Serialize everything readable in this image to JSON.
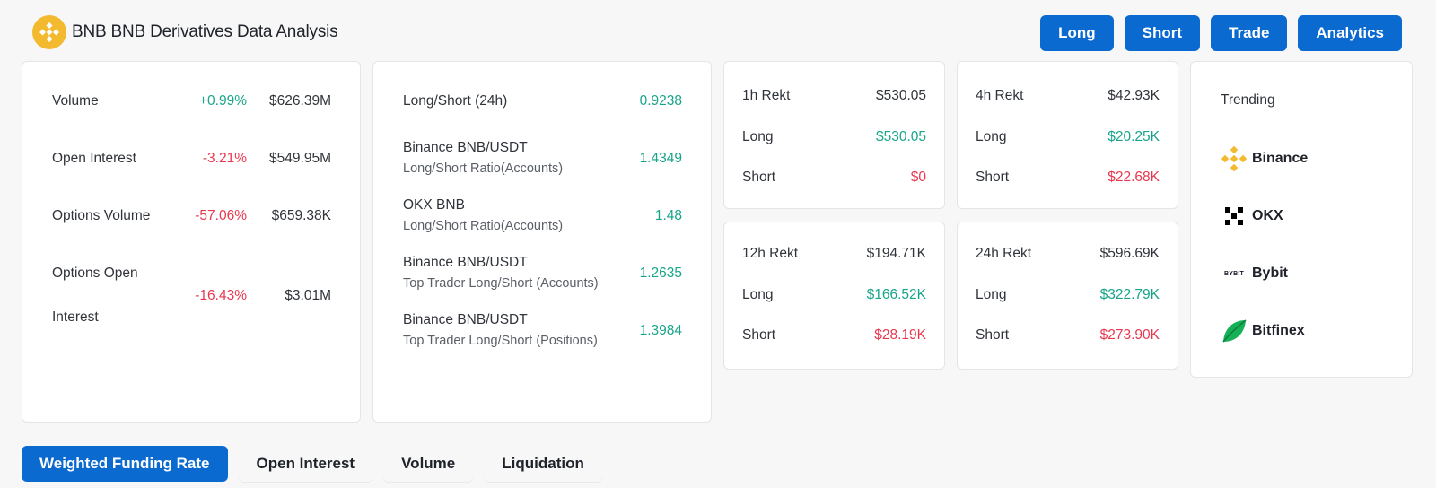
{
  "header": {
    "title": "BNB BNB Derivatives Data Analysis",
    "logo_icon": "bnb-coin-icon"
  },
  "actions": [
    "Long",
    "Short",
    "Trade",
    "Analytics"
  ],
  "metrics": [
    {
      "label": "Volume",
      "change": "+0.99%",
      "value": "$626.39M",
      "trend": "up"
    },
    {
      "label": "Open Interest",
      "change": "-3.21%",
      "value": "$549.95M",
      "trend": "down"
    },
    {
      "label": "Options Volume",
      "change": "-57.06%",
      "value": "$659.38K",
      "trend": "down"
    },
    {
      "label": "Options Open",
      "label2": "Interest",
      "change": "-16.43%",
      "value": "$3.01M",
      "trend": "down"
    }
  ],
  "long_short": {
    "header_label": "Long/Short (24h)",
    "header_value": "0.9238",
    "rows": [
      {
        "line1": "Binance BNB/USDT",
        "line2": "Long/Short Ratio(Accounts)",
        "value": "1.4349"
      },
      {
        "line1": "OKX BNB",
        "line2": "Long/Short Ratio(Accounts)",
        "value": "1.48"
      },
      {
        "line1": "Binance BNB/USDT",
        "line2": "Top Trader Long/Short (Accounts)",
        "value": "1.2635"
      },
      {
        "line1": "Binance BNB/USDT",
        "line2": "Top Trader Long/Short (Positions)",
        "value": "1.3984"
      }
    ]
  },
  "rekt": [
    {
      "label": "1h Rekt",
      "total": "$530.05",
      "long_label": "Long",
      "long": "$530.05",
      "short_label": "Short",
      "short": "$0"
    },
    {
      "label": "4h Rekt",
      "total": "$42.93K",
      "long_label": "Long",
      "long": "$20.25K",
      "short_label": "Short",
      "short": "$22.68K"
    },
    {
      "label": "12h Rekt",
      "total": "$194.71K",
      "long_label": "Long",
      "long": "$166.52K",
      "short_label": "Short",
      "short": "$28.19K"
    },
    {
      "label": "24h Rekt",
      "total": "$596.69K",
      "long_label": "Long",
      "long": "$322.79K",
      "short_label": "Short",
      "short": "$273.90K"
    }
  ],
  "trending": {
    "title": "Trending",
    "exchanges": [
      {
        "name": "Binance",
        "icon": "binance-logo-icon"
      },
      {
        "name": "OKX",
        "icon": "okx-logo-icon"
      },
      {
        "name": "Bybit",
        "icon": "bybit-logo-icon",
        "logo_text": "BYBIT"
      },
      {
        "name": "Bitfinex",
        "icon": "bitfinex-logo-icon"
      }
    ]
  },
  "tabs": [
    {
      "label": "Weighted Funding Rate",
      "active": true
    },
    {
      "label": "Open Interest",
      "active": false
    },
    {
      "label": "Volume",
      "active": false
    },
    {
      "label": "Liquidation",
      "active": false
    }
  ],
  "colors": {
    "accent": "#0b6ad0",
    "positive": "#17a589",
    "negative": "#e8384f",
    "bnb": "#f3ba2f"
  }
}
